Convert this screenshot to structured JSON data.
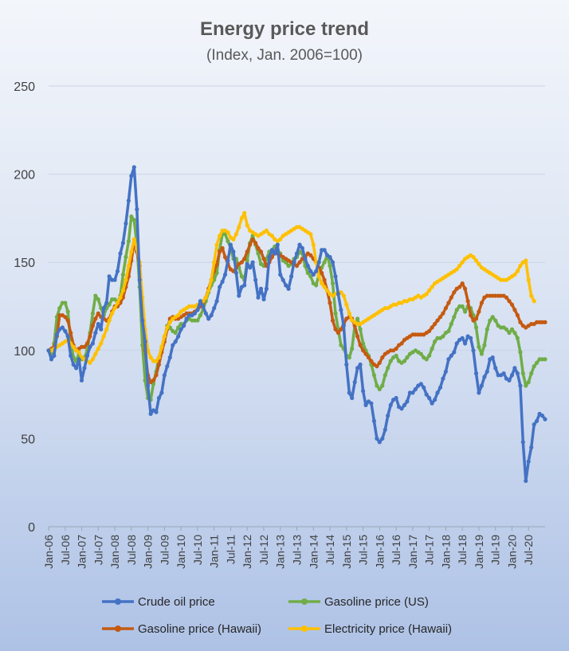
{
  "chart_data": {
    "type": "line",
    "title": "Energy price trend",
    "subtitle": "(Index, Jan. 2006=100)",
    "xlabel": "",
    "ylabel": "",
    "ylim": [
      0,
      250
    ],
    "yticks": [
      "0",
      "50",
      "100",
      "150",
      "200",
      "250"
    ],
    "x_tick_labels": [
      "Jan-06",
      "Jul-06",
      "Jan-07",
      "Jul-07",
      "Jan-08",
      "Jul-08",
      "Jan-09",
      "Jul-09",
      "Jan-10",
      "Jul-10",
      "Jan-11",
      "Jul-11",
      "Jan-12",
      "Jul-12",
      "Jan-13",
      "Jul-13",
      "Jan-14",
      "Jul-14",
      "Jan-15",
      "Jul-15",
      "Jan-16",
      "Jul-16",
      "Jan-17",
      "Jul-17",
      "Jan-18",
      "Jul-18",
      "Jan-19",
      "Jul-19",
      "Jan-20",
      "Jul-20"
    ],
    "x_start": "Jan-06",
    "x_frequency": "monthly",
    "grid": true,
    "legend_position": "bottom",
    "series": [
      {
        "name": "Crude oil price",
        "color": "#4472C4",
        "values": [
          100,
          95,
          97,
          109,
          112,
          113,
          111,
          108,
          97,
          92,
          90,
          95,
          83,
          90,
          97,
          102,
          104,
          110,
          115,
          112,
          124,
          127,
          142,
          140,
          140,
          145,
          155,
          161,
          172,
          185,
          199,
          204,
          180,
          140,
          117,
          105,
          80,
          64,
          66,
          65,
          73,
          76,
          86,
          91,
          96,
          103,
          105,
          108,
          112,
          114,
          118,
          120,
          120,
          121,
          123,
          128,
          125,
          121,
          118,
          120,
          124,
          128,
          136,
          139,
          143,
          151,
          160,
          156,
          144,
          131,
          136,
          137,
          149,
          147,
          150,
          140,
          130,
          135,
          129,
          135,
          153,
          157,
          155,
          160,
          143,
          140,
          137,
          135,
          142,
          150,
          155,
          160,
          158,
          152,
          148,
          145,
          143,
          145,
          150,
          157,
          157,
          154,
          153,
          150,
          142,
          132,
          123,
          114,
          92,
          76,
          73,
          82,
          90,
          92,
          77,
          69,
          71,
          70,
          60,
          50,
          48,
          50,
          55,
          63,
          69,
          72,
          73,
          68,
          67,
          69,
          71,
          76,
          76,
          78,
          80,
          81,
          79,
          75,
          73,
          70,
          72,
          76,
          79,
          84,
          88,
          95,
          97,
          99,
          104,
          106,
          107,
          104,
          108,
          107,
          100,
          87,
          76,
          80,
          85,
          88,
          95,
          96,
          90,
          86,
          86,
          87,
          84,
          83,
          86,
          90,
          87,
          80,
          48,
          26,
          37,
          45,
          58,
          60,
          64,
          63,
          61
        ]
      },
      {
        "name": "Gasoline price (US)",
        "color": "#70AD47",
        "values": [
          100,
          98,
          104,
          119,
          124,
          127,
          127,
          122,
          105,
          96,
          94,
          98,
          95,
          96,
          100,
          110,
          121,
          131,
          129,
          124,
          120,
          124,
          126,
          129,
          129,
          127,
          131,
          143,
          153,
          162,
          176,
          174,
          160,
          136,
          103,
          83,
          73,
          72,
          81,
          88,
          96,
          101,
          107,
          114,
          113,
          111,
          110,
          113,
          115,
          115,
          117,
          118,
          117,
          117,
          117,
          120,
          123,
          128,
          133,
          137,
          140,
          144,
          157,
          166,
          166,
          162,
          158,
          152,
          152,
          147,
          142,
          140,
          151,
          161,
          165,
          160,
          155,
          149,
          148,
          152,
          156,
          157,
          159,
          157,
          155,
          151,
          150,
          148,
          149,
          152,
          153,
          156,
          155,
          148,
          144,
          142,
          138,
          137,
          143,
          147,
          150,
          154,
          148,
          138,
          121,
          112,
          103,
          101,
          97,
          96,
          101,
          114,
          118,
          112,
          104,
          100,
          97,
          92,
          86,
          80,
          78,
          80,
          86,
          90,
          94,
          96,
          97,
          94,
          93,
          94,
          96,
          98,
          99,
          100,
          99,
          98,
          96,
          95,
          97,
          101,
          105,
          107,
          107,
          108,
          110,
          111,
          115,
          119,
          123,
          125,
          125,
          122,
          125,
          124,
          120,
          113,
          102,
          98,
          103,
          112,
          117,
          119,
          117,
          114,
          113,
          113,
          112,
          110,
          112,
          110,
          107,
          99,
          87,
          80,
          82,
          87,
          91,
          93,
          95,
          95,
          95
        ]
      },
      {
        "name": "Gasoline price (Hawaii)",
        "color": "#C55A11",
        "values": [
          100,
          101,
          102,
          108,
          120,
          120,
          119,
          117,
          110,
          103,
          100,
          101,
          102,
          102,
          104,
          108,
          114,
          118,
          121,
          119,
          118,
          117,
          118,
          122,
          125,
          125,
          127,
          130,
          136,
          142,
          151,
          161,
          156,
          148,
          125,
          100,
          86,
          82,
          83,
          86,
          92,
          99,
          105,
          112,
          118,
          119,
          118,
          118,
          119,
          120,
          121,
          121,
          121,
          122,
          123,
          125,
          127,
          130,
          135,
          140,
          145,
          149,
          156,
          158,
          153,
          149,
          146,
          145,
          147,
          149,
          150,
          152,
          156,
          160,
          163,
          161,
          158,
          156,
          152,
          148,
          150,
          153,
          156,
          155,
          154,
          153,
          152,
          151,
          150,
          149,
          148,
          150,
          152,
          153,
          155,
          154,
          152,
          150,
          147,
          144,
          140,
          134,
          127,
          117,
          112,
          110,
          112,
          115,
          118,
          119,
          118,
          114,
          108,
          103,
          100,
          98,
          96,
          94,
          92,
          91,
          93,
          96,
          98,
          99,
          100,
          100,
          101,
          103,
          104,
          106,
          107,
          108,
          109,
          109,
          109,
          109,
          109,
          110,
          111,
          113,
          115,
          117,
          119,
          121,
          124,
          127,
          130,
          133,
          135,
          136,
          138,
          135,
          128,
          120,
          117,
          118,
          122,
          127,
          130,
          131,
          131,
          131,
          131,
          131,
          131,
          131,
          130,
          128,
          126,
          123,
          120,
          116,
          114,
          113,
          114,
          115,
          115,
          116,
          116,
          116,
          116
        ]
      },
      {
        "name": "Electricity price (Hawaii)",
        "color": "#FFC000",
        "values": [
          100,
          100,
          101,
          102,
          103,
          104,
          105,
          106,
          104,
          102,
          100,
          99,
          96,
          95,
          94,
          93,
          95,
          98,
          101,
          104,
          108,
          112,
          117,
          121,
          124,
          127,
          130,
          134,
          140,
          148,
          156,
          163,
          158,
          150,
          130,
          112,
          100,
          96,
          94,
          94,
          96,
          102,
          108,
          113,
          116,
          118,
          119,
          120,
          122,
          123,
          124,
          125,
          125,
          125,
          126,
          127,
          128,
          130,
          134,
          140,
          150,
          160,
          165,
          168,
          168,
          167,
          164,
          163,
          166,
          170,
          175,
          178,
          171,
          168,
          167,
          166,
          165,
          166,
          167,
          168,
          166,
          165,
          163,
          162,
          163,
          165,
          166,
          167,
          168,
          169,
          170,
          170,
          169,
          168,
          167,
          166,
          160,
          150,
          142,
          138,
          136,
          134,
          132,
          131,
          132,
          133,
          133,
          131,
          126,
          121,
          117,
          116,
          115,
          115,
          116,
          117,
          118,
          119,
          120,
          121,
          122,
          123,
          124,
          124,
          125,
          126,
          126,
          127,
          127,
          128,
          128,
          129,
          129,
          130,
          131,
          130,
          131,
          132,
          134,
          136,
          138,
          139,
          140,
          141,
          142,
          143,
          144,
          145,
          146,
          148,
          150,
          152,
          153,
          154,
          153,
          151,
          149,
          147,
          146,
          145,
          144,
          143,
          142,
          141,
          140,
          140,
          140,
          141,
          142,
          143,
          145,
          148,
          150,
          151,
          140,
          131,
          128
        ]
      }
    ]
  }
}
